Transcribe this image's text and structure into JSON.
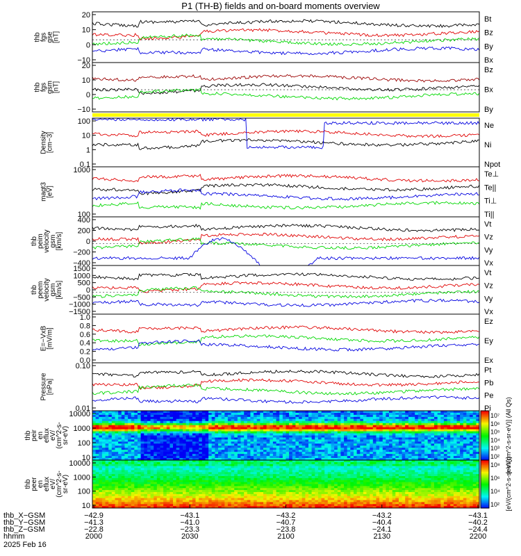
{
  "title": "P1 (TH-B) fields and on-board moments overview",
  "colors": {
    "black": "#000000",
    "red": "#e00000",
    "green": "#00d800",
    "blue": "#0000e0",
    "yellow": "#ffff00"
  },
  "chart_data": [
    {
      "type": "line",
      "ylabel_lines": [
        "thb",
        "fgs",
        "gse",
        "[nT]"
      ],
      "yticks": [
        "20",
        "10",
        "0",
        "−10"
      ],
      "ylim": [
        -20,
        22
      ],
      "legend": [
        {
          "name": "Bt",
          "color": "black"
        },
        {
          "name": "Bz",
          "color": "red"
        },
        {
          "name": "By",
          "color": "green"
        },
        {
          "name": "Bx",
          "color": "blue"
        }
      ]
    },
    {
      "type": "line",
      "ylabel_lines": [
        "thb",
        "fgs",
        "gsm",
        "[nT]"
      ],
      "yticks": [
        "20",
        "10",
        "0",
        "−10"
      ],
      "ylim": [
        -20,
        22
      ],
      "legend": [
        {
          "name": "Bz",
          "color": "darkred"
        },
        {
          "name": "Bx",
          "color": "black"
        },
        {
          "name": "By",
          "color": "green"
        }
      ]
    },
    {
      "type": "bar",
      "description_free": true,
      "color": "yellow"
    },
    {
      "type": "line",
      "scale": "log",
      "ylabel_lines": [
        "Density",
        "[cm−3]"
      ],
      "yticks": [
        "100",
        "10",
        "1",
        "0.1"
      ],
      "ylim": [
        0.1,
        100
      ],
      "legend": [
        {
          "name": "Ne",
          "color": "red"
        },
        {
          "name": "Ni",
          "color": "black"
        },
        {
          "name": "Npot",
          "color": "blue"
        }
      ]
    },
    {
      "type": "line",
      "scale": "log",
      "ylabel_lines": [
        "magt3",
        "[eV]"
      ],
      "yticks": [
        "1000",
        "100"
      ],
      "ylim": [
        10,
        2000
      ],
      "legend": [
        {
          "name": "Te⊥",
          "color": "red"
        },
        {
          "name": "Te||",
          "color": "black"
        },
        {
          "name": "Ti⊥",
          "color": "blue"
        },
        {
          "name": "Ti||",
          "color": "green"
        }
      ]
    },
    {
      "type": "line",
      "ylabel_lines": [
        "thb",
        "peim",
        "velocity",
        "gsm",
        "[km/s]"
      ],
      "yticks": [
        "400",
        "200",
        "0",
        "−200",
        "−400"
      ],
      "ylim": [
        -500,
        500
      ],
      "legend": [
        {
          "name": "Vt",
          "color": "black"
        },
        {
          "name": "Vz",
          "color": "red"
        },
        {
          "name": "Vy",
          "color": "green"
        },
        {
          "name": "Vx",
          "color": "blue"
        }
      ]
    },
    {
      "type": "line",
      "ylabel_lines": [
        "thb",
        "peem",
        "velocity",
        "gsm",
        "[km/s]"
      ],
      "yticks": [
        "1500",
        "1000",
        "500",
        "0",
        "−500",
        "−1000",
        "−1500"
      ],
      "ylim": [
        -1500,
        1500
      ],
      "legend": [
        {
          "name": "Vt",
          "color": "black"
        },
        {
          "name": "Vz",
          "color": "red"
        },
        {
          "name": "Vy",
          "color": "green"
        },
        {
          "name": "Vx",
          "color": "blue"
        }
      ]
    },
    {
      "type": "line",
      "ylabel_lines": [
        "E=−VxB",
        "[mV/m]"
      ],
      "yticks": [
        "1.0",
        "0.8",
        "0.6",
        "0.4",
        "0.2",
        "0.0"
      ],
      "ylim": [
        0,
        1
      ],
      "legend": [
        {
          "name": "Ez",
          "color": "red"
        },
        {
          "name": "Ey",
          "color": "green"
        },
        {
          "name": "Ex",
          "color": "blue"
        }
      ]
    },
    {
      "type": "line",
      "scale": "log",
      "ylabel_lines": [
        "Pressure",
        "[nPa]"
      ],
      "yticks": [
        "0.10",
        "0.01"
      ],
      "ylim": [
        0.003,
        0.3
      ],
      "legend": [
        {
          "name": "Pt",
          "color": "black"
        },
        {
          "name": "Pb",
          "color": "red"
        },
        {
          "name": "Pe",
          "color": "green"
        },
        {
          "name": "Pi",
          "color": "blue"
        }
      ]
    },
    {
      "type": "heatmap",
      "ylabel_lines": [
        "thb",
        "peir",
        "en",
        "eflux",
        "eV/",
        "(cm^2-s-",
        "sr-eV)"
      ],
      "yticks": [
        "10000",
        "1000",
        "100",
        "10"
      ],
      "ylim": [
        5,
        30000
      ],
      "colorbar_ticks": [
        "10⁷",
        "10⁶",
        "10⁵",
        "10⁴",
        "10³",
        "10²"
      ],
      "colorbar_label": "[eV/(cm^2-s-sr-eV)] (All Qs)"
    },
    {
      "type": "heatmap",
      "ylabel_lines": [
        "thb",
        "peer",
        "en",
        "eflux",
        "eV/",
        "(cm^2-s-",
        "sr-eV)"
      ],
      "yticks": [
        "10000",
        "1000",
        "100",
        "10"
      ],
      "ylim": [
        5,
        30000
      ],
      "colorbar_ticks": [
        "10⁸",
        "10⁶",
        "10⁴",
        "10²"
      ],
      "colorbar_label": "[eV/(cm^2-s-sr-eV)]"
    }
  ],
  "x_axis": {
    "tick_labels": [
      "2000",
      "2030",
      "2100",
      "2130",
      "2200"
    ],
    "rows": [
      {
        "label": "thb_X−GSM",
        "values": [
          "−42.9",
          "−43.1",
          "−43.2",
          "−43.2",
          "−43.1"
        ]
      },
      {
        "label": "thb_Y−GSM",
        "values": [
          "−41.3",
          "−41.0",
          "−40.7",
          "−40.4",
          "−40.2"
        ]
      },
      {
        "label": "thb_Z−GSM",
        "values": [
          "−22.8",
          "−23.3",
          "−23.8",
          "−24.1",
          "−24.4"
        ]
      },
      {
        "label": "hhmm",
        "values": [
          "2000",
          "2030",
          "2100",
          "2130",
          "2200"
        ]
      }
    ],
    "date": "2025 Feb 16"
  }
}
